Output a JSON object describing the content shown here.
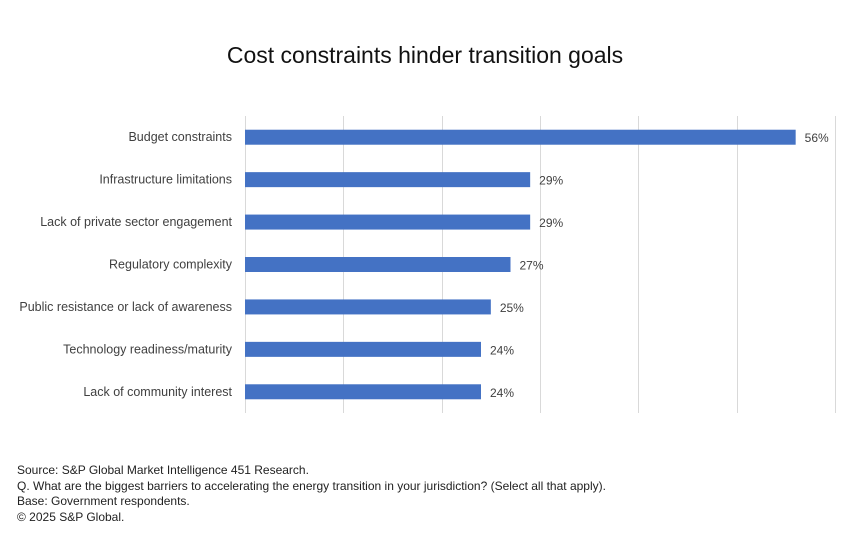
{
  "chart_data": {
    "type": "bar",
    "orientation": "horizontal",
    "title": "Cost constraints hinder transition goals",
    "categories": [
      "Budget constraints",
      "Infrastructure limitations",
      "Lack of private sector engagement",
      "Regulatory complexity",
      "Public resistance or lack of awareness",
      "Technology readiness/maturity",
      "Lack of community interest"
    ],
    "values": [
      56,
      29,
      29,
      27,
      25,
      24,
      24
    ],
    "value_labels": [
      "56%",
      "29%",
      "29%",
      "27%",
      "25%",
      "24%",
      "24%"
    ],
    "unit": "%",
    "xlim": [
      0,
      60
    ],
    "grid": true,
    "bar_color": "#4472C4",
    "grid_color": "#D9D9D9"
  },
  "footnotes": {
    "source": "Source: S&P Global Market Intelligence 451 Research.",
    "question": "Q. What are the biggest barriers to accelerating the energy transition in your jurisdiction? (Select all that apply).",
    "base": "Base: Government respondents.",
    "copyright": "© 2025 S&P Global."
  }
}
